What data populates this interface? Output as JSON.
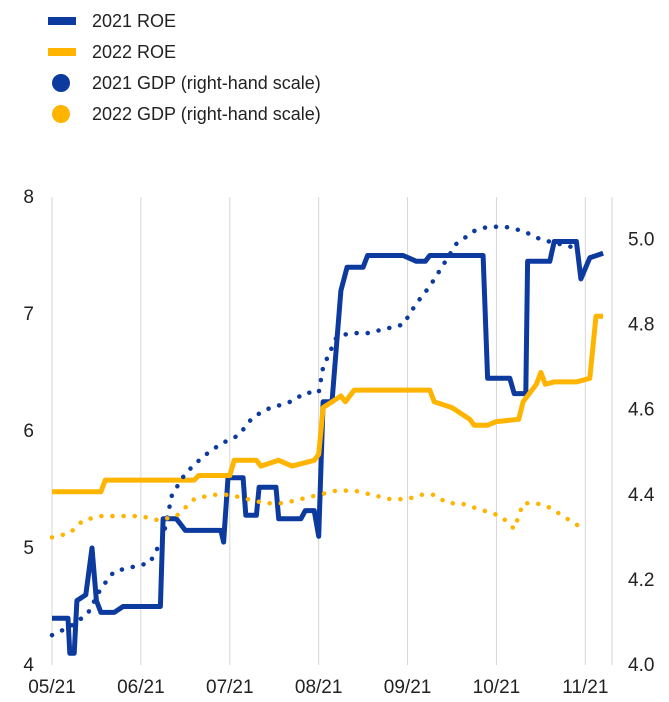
{
  "chart_data": {
    "type": "line",
    "title": "",
    "xlabel": "",
    "ylabel": "",
    "x_ticks": [
      "05/21",
      "06/21",
      "07/21",
      "08/21",
      "09/21",
      "10/21",
      "11/21"
    ],
    "y_left": {
      "range": [
        4,
        8
      ],
      "ticks": [
        "4",
        "5",
        "6",
        "7",
        "8"
      ]
    },
    "y_right": {
      "range": [
        4.0,
        5.1
      ],
      "ticks": [
        "4.0",
        "4.2",
        "4.4",
        "4.6",
        "4.8",
        "5.0"
      ]
    },
    "grid": "vertical at month ticks",
    "legend": {
      "placement": "top-left"
    },
    "colors": {
      "blue": "#0d3a9e",
      "yellow": "#ffb400"
    },
    "series": [
      {
        "name": "2021 ROE",
        "style": "line",
        "axis": "left",
        "color": "#0d3a9e",
        "points": [
          [
            0.0,
            4.4
          ],
          [
            0.18,
            4.4
          ],
          [
            0.2,
            4.1
          ],
          [
            0.25,
            4.1
          ],
          [
            0.28,
            4.55
          ],
          [
            0.38,
            4.6
          ],
          [
            0.45,
            5.0
          ],
          [
            0.5,
            4.55
          ],
          [
            0.55,
            4.45
          ],
          [
            0.7,
            4.45
          ],
          [
            0.8,
            4.5
          ],
          [
            1.0,
            4.5
          ],
          [
            1.22,
            4.5
          ],
          [
            1.25,
            5.25
          ],
          [
            1.4,
            5.25
          ],
          [
            1.45,
            5.2
          ],
          [
            1.5,
            5.15
          ],
          [
            1.9,
            5.15
          ],
          [
            1.93,
            5.05
          ],
          [
            1.98,
            5.6
          ],
          [
            2.15,
            5.6
          ],
          [
            2.18,
            5.28
          ],
          [
            2.3,
            5.28
          ],
          [
            2.33,
            5.52
          ],
          [
            2.52,
            5.52
          ],
          [
            2.55,
            5.25
          ],
          [
            2.8,
            5.25
          ],
          [
            2.85,
            5.32
          ],
          [
            2.95,
            5.32
          ],
          [
            3.0,
            5.1
          ],
          [
            3.05,
            6.25
          ],
          [
            3.15,
            6.25
          ],
          [
            3.25,
            7.2
          ],
          [
            3.32,
            7.4
          ],
          [
            3.5,
            7.4
          ],
          [
            3.55,
            7.5
          ],
          [
            3.95,
            7.5
          ],
          [
            4.1,
            7.45
          ],
          [
            4.2,
            7.45
          ],
          [
            4.25,
            7.5
          ],
          [
            4.85,
            7.5
          ],
          [
            4.9,
            6.45
          ],
          [
            5.15,
            6.45
          ],
          [
            5.2,
            6.32
          ],
          [
            5.33,
            6.32
          ],
          [
            5.35,
            7.45
          ],
          [
            5.6,
            7.45
          ],
          [
            5.65,
            7.62
          ],
          [
            5.9,
            7.62
          ],
          [
            5.95,
            7.3
          ],
          [
            6.05,
            7.48
          ],
          [
            6.2,
            7.52
          ]
        ]
      },
      {
        "name": "2022 ROE",
        "style": "line",
        "axis": "left",
        "color": "#ffb400",
        "points": [
          [
            0.0,
            5.48
          ],
          [
            0.55,
            5.48
          ],
          [
            0.6,
            5.58
          ],
          [
            1.6,
            5.58
          ],
          [
            1.65,
            5.62
          ],
          [
            2.0,
            5.62
          ],
          [
            2.05,
            5.75
          ],
          [
            2.3,
            5.75
          ],
          [
            2.35,
            5.7
          ],
          [
            2.55,
            5.75
          ],
          [
            2.7,
            5.7
          ],
          [
            2.95,
            5.75
          ],
          [
            3.0,
            5.8
          ],
          [
            3.05,
            6.2
          ],
          [
            3.15,
            6.25
          ],
          [
            3.25,
            6.3
          ],
          [
            3.3,
            6.25
          ],
          [
            3.4,
            6.35
          ],
          [
            4.25,
            6.35
          ],
          [
            4.3,
            6.25
          ],
          [
            4.5,
            6.2
          ],
          [
            4.7,
            6.1
          ],
          [
            4.75,
            6.05
          ],
          [
            4.9,
            6.05
          ],
          [
            5.0,
            6.08
          ],
          [
            5.25,
            6.1
          ],
          [
            5.3,
            6.25
          ],
          [
            5.45,
            6.4
          ],
          [
            5.5,
            6.5
          ],
          [
            5.55,
            6.4
          ],
          [
            5.65,
            6.42
          ],
          [
            5.9,
            6.42
          ],
          [
            6.05,
            6.45
          ],
          [
            6.12,
            6.98
          ],
          [
            6.2,
            6.98
          ]
        ]
      },
      {
        "name": "2021 GDP (right-hand scale)",
        "style": "dotted",
        "axis": "right",
        "color": "#0d3a9e",
        "points": [
          [
            0.0,
            4.07
          ],
          [
            0.2,
            4.09
          ],
          [
            0.4,
            4.12
          ],
          [
            0.55,
            4.18
          ],
          [
            0.7,
            4.22
          ],
          [
            0.9,
            4.23
          ],
          [
            1.1,
            4.24
          ],
          [
            1.25,
            4.3
          ],
          [
            1.35,
            4.4
          ],
          [
            1.5,
            4.45
          ],
          [
            1.7,
            4.49
          ],
          [
            1.9,
            4.52
          ],
          [
            2.1,
            4.54
          ],
          [
            2.25,
            4.58
          ],
          [
            2.4,
            4.6
          ],
          [
            2.55,
            4.61
          ],
          [
            2.7,
            4.62
          ],
          [
            2.85,
            4.64
          ],
          [
            3.0,
            4.64
          ],
          [
            3.05,
            4.7
          ],
          [
            3.2,
            4.77
          ],
          [
            3.35,
            4.78
          ],
          [
            3.55,
            4.78
          ],
          [
            3.75,
            4.79
          ],
          [
            3.95,
            4.8
          ],
          [
            4.1,
            4.85
          ],
          [
            4.25,
            4.89
          ],
          [
            4.4,
            4.94
          ],
          [
            4.55,
            4.99
          ],
          [
            4.75,
            5.02
          ],
          [
            4.9,
            5.03
          ],
          [
            5.1,
            5.03
          ],
          [
            5.3,
            5.02
          ],
          [
            5.5,
            5.0
          ],
          [
            5.7,
            4.99
          ],
          [
            5.9,
            4.98
          ]
        ]
      },
      {
        "name": "2022 GDP (right-hand scale)",
        "style": "dotted",
        "axis": "right",
        "color": "#ffb400",
        "points": [
          [
            0.0,
            4.3
          ],
          [
            0.2,
            4.31
          ],
          [
            0.35,
            4.34
          ],
          [
            0.55,
            4.35
          ],
          [
            0.75,
            4.35
          ],
          [
            1.0,
            4.35
          ],
          [
            1.2,
            4.34
          ],
          [
            1.4,
            4.35
          ],
          [
            1.6,
            4.39
          ],
          [
            1.8,
            4.4
          ],
          [
            2.0,
            4.4
          ],
          [
            2.2,
            4.39
          ],
          [
            2.4,
            4.38
          ],
          [
            2.6,
            4.38
          ],
          [
            2.8,
            4.39
          ],
          [
            3.0,
            4.4
          ],
          [
            3.2,
            4.41
          ],
          [
            3.4,
            4.41
          ],
          [
            3.6,
            4.4
          ],
          [
            3.8,
            4.39
          ],
          [
            4.0,
            4.39
          ],
          [
            4.15,
            4.4
          ],
          [
            4.3,
            4.4
          ],
          [
            4.45,
            4.38
          ],
          [
            4.6,
            4.38
          ],
          [
            4.75,
            4.37
          ],
          [
            4.9,
            4.36
          ],
          [
            5.05,
            4.35
          ],
          [
            5.2,
            4.32
          ],
          [
            5.3,
            4.38
          ],
          [
            5.45,
            4.38
          ],
          [
            5.6,
            4.37
          ],
          [
            5.75,
            4.35
          ],
          [
            5.9,
            4.33
          ],
          [
            6.0,
            4.32
          ]
        ]
      }
    ]
  }
}
